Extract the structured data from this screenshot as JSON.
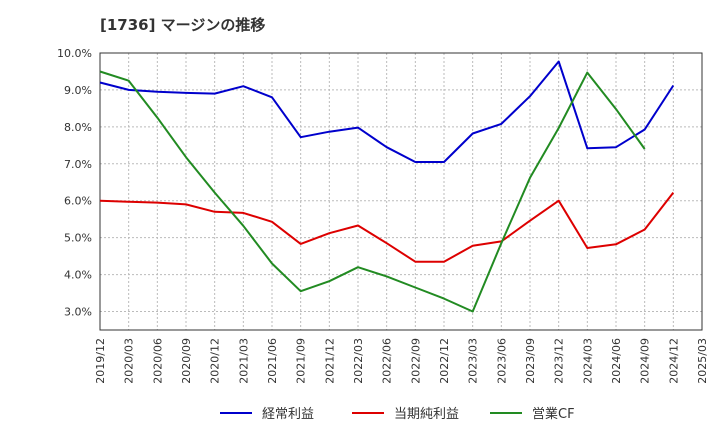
{
  "chart_data": {
    "type": "line",
    "title": "[1736]  マージンの推移",
    "xlabel": "",
    "ylabel": "",
    "ylim": [
      2.5,
      10.0
    ],
    "yticks": [
      3.0,
      4.0,
      5.0,
      6.0,
      7.0,
      8.0,
      9.0,
      10.0
    ],
    "ytick_labels": [
      "3.0%",
      "4.0%",
      "5.0%",
      "6.0%",
      "7.0%",
      "8.0%",
      "9.0%",
      "10.0%"
    ],
    "x_labels": [
      "2019/12",
      "2020/03",
      "2020/06",
      "2020/09",
      "2020/12",
      "2021/03",
      "2021/06",
      "2021/09",
      "2021/12",
      "2022/03",
      "2022/06",
      "2022/09",
      "2022/12",
      "2023/03",
      "2023/06",
      "2023/09",
      "2023/12",
      "2024/03",
      "2024/06",
      "2024/09",
      "2024/12",
      "2025/03"
    ],
    "grid": true,
    "legend_position": "bottom",
    "series": [
      {
        "name": "経常利益",
        "color": "#0000cc",
        "values": [
          9.2,
          9.0,
          8.95,
          8.92,
          8.9,
          9.1,
          8.8,
          7.72,
          7.87,
          7.98,
          7.45,
          7.05,
          7.05,
          7.82,
          8.08,
          8.83,
          9.77,
          7.42,
          7.45,
          7.93,
          9.12,
          null
        ]
      },
      {
        "name": "当期純利益",
        "color": "#dd0000",
        "values": [
          6.0,
          5.97,
          5.95,
          5.9,
          5.7,
          5.67,
          5.43,
          4.83,
          5.12,
          5.33,
          4.85,
          4.35,
          4.35,
          4.78,
          4.9,
          5.46,
          6.0,
          4.72,
          4.82,
          5.22,
          6.22,
          null
        ]
      },
      {
        "name": "営業CF",
        "color": "#228b22",
        "values": [
          9.5,
          9.25,
          8.25,
          7.18,
          6.22,
          5.32,
          4.3,
          3.55,
          3.82,
          4.2,
          3.95,
          3.65,
          3.35,
          3.0,
          4.85,
          6.62,
          7.97,
          9.47,
          8.48,
          7.4,
          null,
          null
        ]
      }
    ]
  }
}
